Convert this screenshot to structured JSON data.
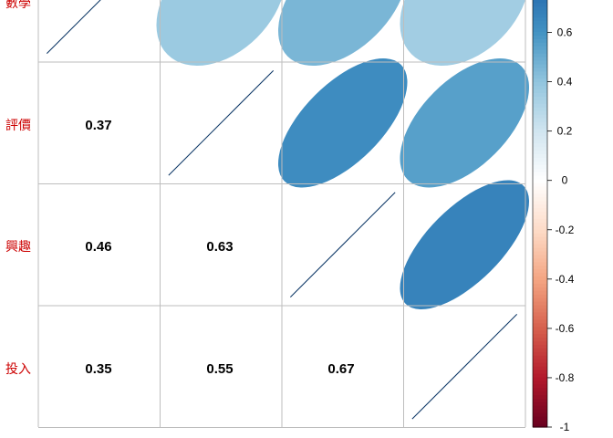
{
  "chart_data": {
    "type": "heatmap",
    "variables": [
      "數學",
      "評價",
      "興趣",
      "投入"
    ],
    "row_labels": [
      "數學",
      "評價",
      "興趣",
      "投入"
    ],
    "lower_triangle": {
      "cells": [
        {
          "row": 1,
          "col": 0,
          "label": "0.37",
          "value": 0.37
        },
        {
          "row": 2,
          "col": 0,
          "label": "0.46",
          "value": 0.46
        },
        {
          "row": 2,
          "col": 1,
          "label": "0.63",
          "value": 0.63
        },
        {
          "row": 3,
          "col": 0,
          "label": "0.35",
          "value": 0.35
        },
        {
          "row": 3,
          "col": 1,
          "label": "0.55",
          "value": 0.55
        },
        {
          "row": 3,
          "col": 2,
          "label": "0.67",
          "value": 0.67
        }
      ]
    },
    "upper_triangle_ellipses": [
      {
        "row": 0,
        "col": 1,
        "value": 0.37
      },
      {
        "row": 0,
        "col": 2,
        "value": 0.46
      },
      {
        "row": 0,
        "col": 3,
        "value": 0.35
      },
      {
        "row": 1,
        "col": 2,
        "value": 0.63
      },
      {
        "row": 1,
        "col": 3,
        "value": 0.55
      },
      {
        "row": 2,
        "col": 3,
        "value": 0.67
      }
    ],
    "diagonal": [
      {
        "row": 0,
        "col": 0,
        "value": 1
      },
      {
        "row": 1,
        "col": 1,
        "value": 1
      },
      {
        "row": 2,
        "col": 2,
        "value": 1
      },
      {
        "row": 3,
        "col": 3,
        "value": 1
      }
    ],
    "colorbar": {
      "range": [
        -1,
        1
      ],
      "visible_max": 0.75,
      "ticks": [
        "0.6",
        "0.4",
        "0.2",
        "0",
        "-0.2",
        "-0.4",
        "-0.6",
        "-0.8",
        "-1"
      ],
      "tick_values": [
        0.6,
        0.4,
        0.2,
        0,
        -0.2,
        -0.4,
        -0.6,
        -0.8,
        -1
      ],
      "palette": [
        "#67001F",
        "#B2182B",
        "#D6604D",
        "#F4A582",
        "#FDDBC7",
        "#FFFFFF",
        "#D1E5F0",
        "#92C5DE",
        "#4393C3",
        "#2166AC",
        "#053061"
      ]
    },
    "grid": true
  }
}
